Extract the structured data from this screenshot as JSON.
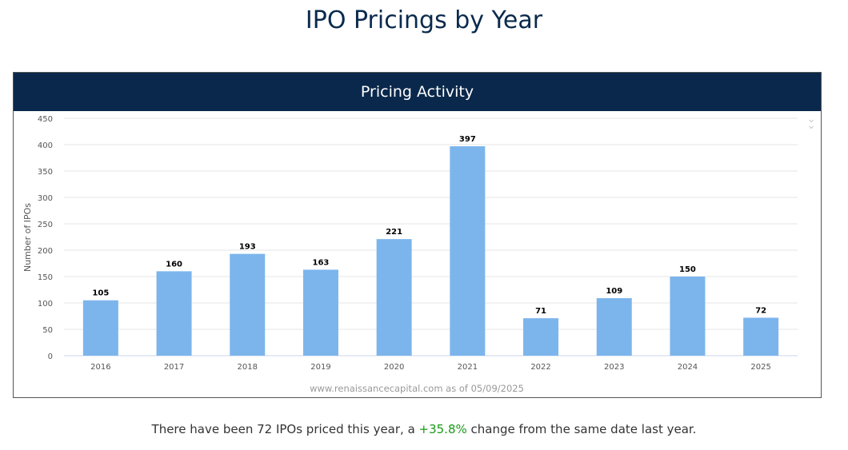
{
  "page_title": "IPO Pricings by Year",
  "panel_title": "Pricing Activity",
  "menu_icon": "double-chevron-down-icon",
  "chart_data": {
    "type": "bar",
    "title": "Pricing Activity",
    "xlabel": "",
    "ylabel": "Number of IPOs",
    "ylim": [
      0,
      450
    ],
    "yticks": [
      0,
      50,
      100,
      150,
      200,
      250,
      300,
      350,
      400,
      450
    ],
    "categories": [
      "2016",
      "2017",
      "2018",
      "2019",
      "2020",
      "2021",
      "2022",
      "2023",
      "2024",
      "2025"
    ],
    "values": [
      105,
      160,
      193,
      163,
      221,
      397,
      71,
      109,
      150,
      72
    ],
    "grid": true,
    "bar_color": "#7cb5ec",
    "credit": "www.renaissancecapital.com as of 05/09/2025"
  },
  "footer": {
    "pre": "There have been 72 IPOs priced this year, a ",
    "change": "+35.8%",
    "post": " change from the same date last year."
  }
}
